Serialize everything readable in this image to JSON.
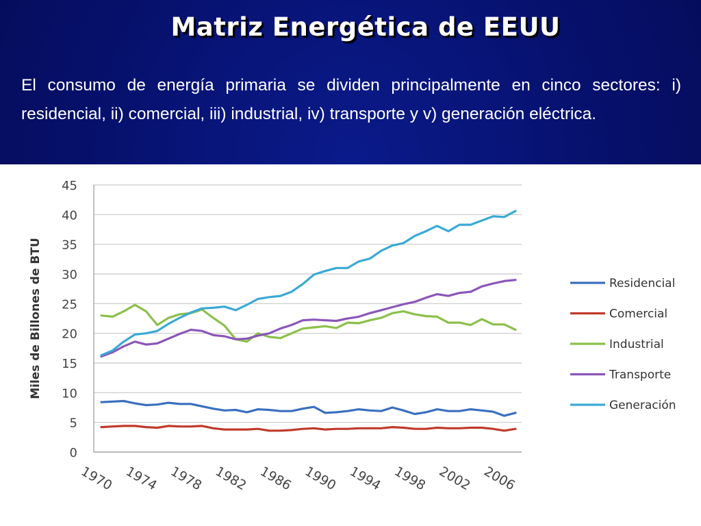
{
  "slide": {
    "title": "Matriz Energética de EEUU",
    "body": "El consumo de energía primaria se dividen principalmente en cinco sectores: i) residencial, ii) comercial, iii) industrial, iv) transporte y v) generación eléctrica."
  },
  "chart_data": {
    "type": "line",
    "title": "",
    "xlabel": "",
    "ylabel": "Miles de Billones de BTU",
    "ylim": [
      0,
      45
    ],
    "yticks": [
      "0",
      "5",
      "10",
      "15",
      "20",
      "25",
      "30",
      "35",
      "40",
      "45"
    ],
    "xlim": [
      1970,
      2007
    ],
    "xticks": [
      "1970",
      "1974",
      "1978",
      "1982",
      "1986",
      "1990",
      "1994",
      "1998",
      "2002",
      "2006"
    ],
    "grid": true,
    "legend_position": "right",
    "x": [
      1970,
      1971,
      1972,
      1973,
      1974,
      1975,
      1976,
      1977,
      1978,
      1979,
      1980,
      1981,
      1982,
      1983,
      1984,
      1985,
      1986,
      1987,
      1988,
      1989,
      1990,
      1991,
      1992,
      1993,
      1994,
      1995,
      1996,
      1997,
      1998,
      1999,
      2000,
      2001,
      2002,
      2003,
      2004,
      2005,
      2006,
      2007
    ],
    "series": [
      {
        "name": "Residencial",
        "color": "#3a6fbf",
        "values": [
          8.4,
          8.5,
          8.6,
          8.2,
          7.9,
          8.0,
          8.3,
          8.1,
          8.1,
          7.7,
          7.3,
          7.0,
          7.1,
          6.7,
          7.2,
          7.1,
          6.9,
          6.9,
          7.3,
          7.6,
          6.6,
          6.7,
          6.9,
          7.2,
          7.0,
          6.9,
          7.5,
          7.0,
          6.4,
          6.7,
          7.2,
          6.9,
          6.9,
          7.2,
          7.0,
          6.8,
          6.1,
          6.6
        ]
      },
      {
        "name": "Comercial",
        "color": "#c0392b",
        "values": [
          4.2,
          4.3,
          4.4,
          4.4,
          4.2,
          4.1,
          4.4,
          4.3,
          4.3,
          4.4,
          4.0,
          3.8,
          3.8,
          3.8,
          3.9,
          3.6,
          3.6,
          3.7,
          3.9,
          4.0,
          3.8,
          3.9,
          3.9,
          4.0,
          4.0,
          4.0,
          4.2,
          4.1,
          3.9,
          3.9,
          4.1,
          4.0,
          4.0,
          4.1,
          4.1,
          3.9,
          3.6,
          3.9
        ]
      },
      {
        "name": "Industrial",
        "color": "#8bbf4a",
        "values": [
          23.0,
          22.8,
          23.7,
          24.8,
          23.7,
          21.4,
          22.6,
          23.2,
          23.4,
          24.0,
          22.6,
          21.3,
          19.0,
          18.6,
          20.0,
          19.4,
          19.2,
          20.0,
          20.8,
          21.0,
          21.2,
          20.9,
          21.8,
          21.7,
          22.2,
          22.6,
          23.4,
          23.7,
          23.2,
          22.9,
          22.8,
          21.8,
          21.8,
          21.4,
          22.4,
          21.5,
          21.5,
          20.6
        ]
      },
      {
        "name": "Transporte",
        "color": "#8a56b8",
        "values": [
          16.1,
          16.8,
          17.8,
          18.6,
          18.1,
          18.3,
          19.1,
          19.9,
          20.6,
          20.4,
          19.7,
          19.5,
          19.0,
          19.1,
          19.6,
          20.0,
          20.8,
          21.4,
          22.2,
          22.3,
          22.2,
          22.1,
          22.5,
          22.8,
          23.4,
          23.9,
          24.4,
          24.9,
          25.3,
          26.0,
          26.6,
          26.3,
          26.8,
          27.0,
          27.9,
          28.4,
          28.8,
          29.0
        ]
      },
      {
        "name": "Generación",
        "color": "#3aa9d4",
        "values": [
          16.3,
          17.1,
          18.6,
          19.8,
          20.0,
          20.4,
          21.6,
          22.6,
          23.5,
          24.2,
          24.3,
          24.5,
          23.9,
          24.8,
          25.8,
          26.1,
          26.3,
          27.0,
          28.3,
          29.9,
          30.5,
          31.0,
          31.0,
          32.1,
          32.6,
          33.9,
          34.8,
          35.2,
          36.4,
          37.2,
          38.1,
          37.2,
          38.3,
          38.3,
          39.0,
          39.7,
          39.6,
          40.6
        ]
      }
    ]
  }
}
